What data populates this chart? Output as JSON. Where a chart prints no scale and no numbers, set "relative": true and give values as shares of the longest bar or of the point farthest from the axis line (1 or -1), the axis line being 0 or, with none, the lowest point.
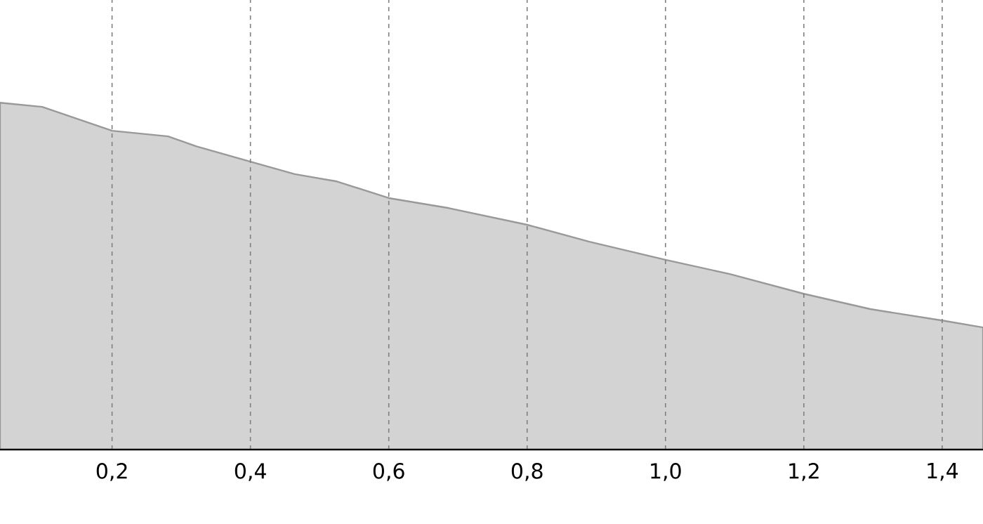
{
  "chart_data": {
    "type": "area",
    "relative": true,
    "grid": true,
    "tick_labels": "x",
    "color": "#d3d3d3",
    "xlim": [
      0.038,
      1.459
    ],
    "xticks": [
      {
        "value": 0.2,
        "label": "0,2"
      },
      {
        "value": 0.4,
        "label": "0,4"
      },
      {
        "value": 0.6,
        "label": "0,6"
      },
      {
        "value": 0.8,
        "label": "0,8"
      },
      {
        "value": 1.0,
        "label": "1,0"
      },
      {
        "value": 1.2,
        "label": "1,2"
      },
      {
        "value": 1.4,
        "label": "1,4"
      }
    ],
    "x": [
      0.038,
      0.099,
      0.2,
      0.281,
      0.322,
      0.4,
      0.464,
      0.525,
      0.6,
      0.687,
      0.8,
      0.89,
      1.0,
      1.093,
      1.2,
      1.296,
      1.4,
      1.459
    ],
    "values": [
      1.0,
      0.988,
      0.919,
      0.903,
      0.874,
      0.83,
      0.794,
      0.773,
      0.725,
      0.696,
      0.648,
      0.599,
      0.547,
      0.506,
      0.449,
      0.405,
      0.372,
      0.352
    ]
  }
}
